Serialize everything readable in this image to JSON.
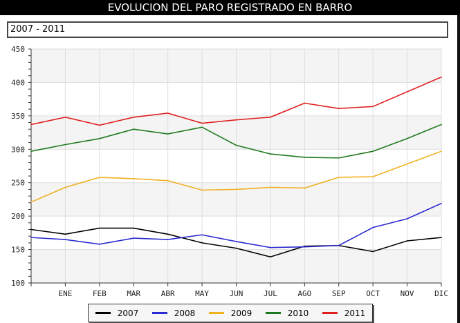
{
  "title": "EVOLUCION DEL PARO REGISTRADO EN BARRO",
  "range_label": "2007 - 2011",
  "chart_data": {
    "type": "line",
    "title": "EVOLUCION DEL PARO REGISTRADO EN BARRO",
    "categories": [
      "",
      "ENE",
      "FEB",
      "MAR",
      "ABR",
      "MAY",
      "JUN",
      "JUL",
      "AGO",
      "SEP",
      "OCT",
      "NOV",
      "DIC"
    ],
    "ylim": [
      100,
      450
    ],
    "yticks": [
      100,
      150,
      200,
      250,
      300,
      350,
      400,
      450
    ],
    "grid": true,
    "legend": "bottom",
    "series": [
      {
        "name": "2007",
        "color": "#000000",
        "values": [
          180,
          173,
          182,
          182,
          173,
          160,
          152,
          139,
          155,
          156,
          147,
          163,
          168
        ]
      },
      {
        "name": "2008",
        "color": "#2a2ad0",
        "values": [
          168,
          165,
          158,
          167,
          165,
          172,
          162,
          153,
          154,
          156,
          183,
          196,
          219
        ]
      },
      {
        "name": "2009",
        "color": "#f0b020",
        "values": [
          221,
          243,
          258,
          256,
          253,
          239,
          240,
          243,
          242,
          258,
          259,
          278,
          297
        ]
      },
      {
        "name": "2010",
        "color": "#1e7a1e",
        "values": [
          297,
          307,
          316,
          330,
          323,
          333,
          306,
          293,
          288,
          287,
          297,
          316,
          337
        ]
      },
      {
        "name": "2011",
        "color": "#e02020",
        "values": [
          337,
          348,
          336,
          348,
          354,
          339,
          344,
          348,
          369,
          361,
          364,
          386,
          408
        ]
      }
    ]
  }
}
